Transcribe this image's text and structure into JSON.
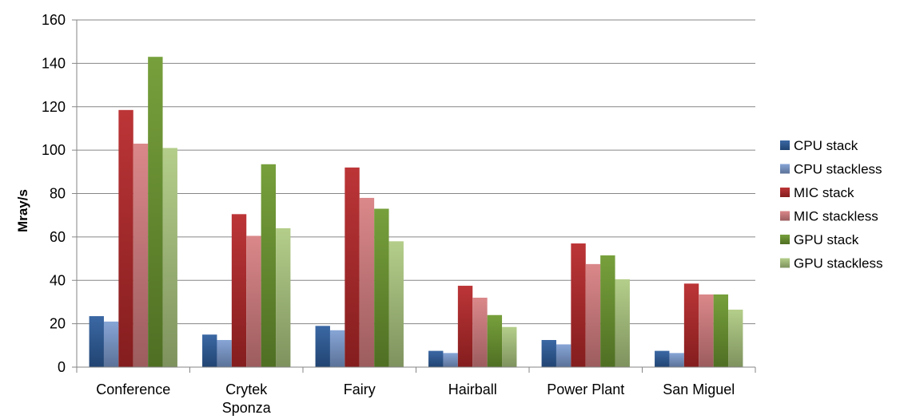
{
  "chart_data": {
    "type": "bar",
    "title": "",
    "xlabel": "",
    "ylabel": "Mray/s",
    "ylim": [
      0,
      160
    ],
    "yticks": [
      0,
      20,
      40,
      60,
      80,
      100,
      120,
      140,
      160
    ],
    "grid": true,
    "legend_position": "right",
    "categories": [
      [
        "Conference"
      ],
      [
        "Crytek",
        "Sponza"
      ],
      [
        "Fairy"
      ],
      [
        "Hairball"
      ],
      [
        "Power Plant"
      ],
      [
        "San Miguel"
      ]
    ],
    "series": [
      {
        "name": "CPU stack",
        "color": "#2E5E9E",
        "values": [
          23.5,
          15,
          19,
          7.5,
          12.5,
          7.5
        ]
      },
      {
        "name": "CPU stackless",
        "color": "#7F9FD3",
        "values": [
          21,
          12.5,
          17,
          6.5,
          10.5,
          6.5
        ]
      },
      {
        "name": "MIC stack",
        "color": "#B8282A",
        "values": [
          118.5,
          70.5,
          92,
          37.5,
          57,
          38.5
        ]
      },
      {
        "name": "MIC stackless",
        "color": "#D98082",
        "values": [
          103,
          60.5,
          78,
          32,
          47.5,
          33.5
        ]
      },
      {
        "name": "GPU stack",
        "color": "#6E9A30",
        "values": [
          143,
          93.5,
          73,
          24,
          51.5,
          33.5
        ]
      },
      {
        "name": "GPU stackless",
        "color": "#AFCB82",
        "values": [
          101,
          64,
          58,
          18.5,
          40.5,
          26.5
        ]
      }
    ]
  }
}
